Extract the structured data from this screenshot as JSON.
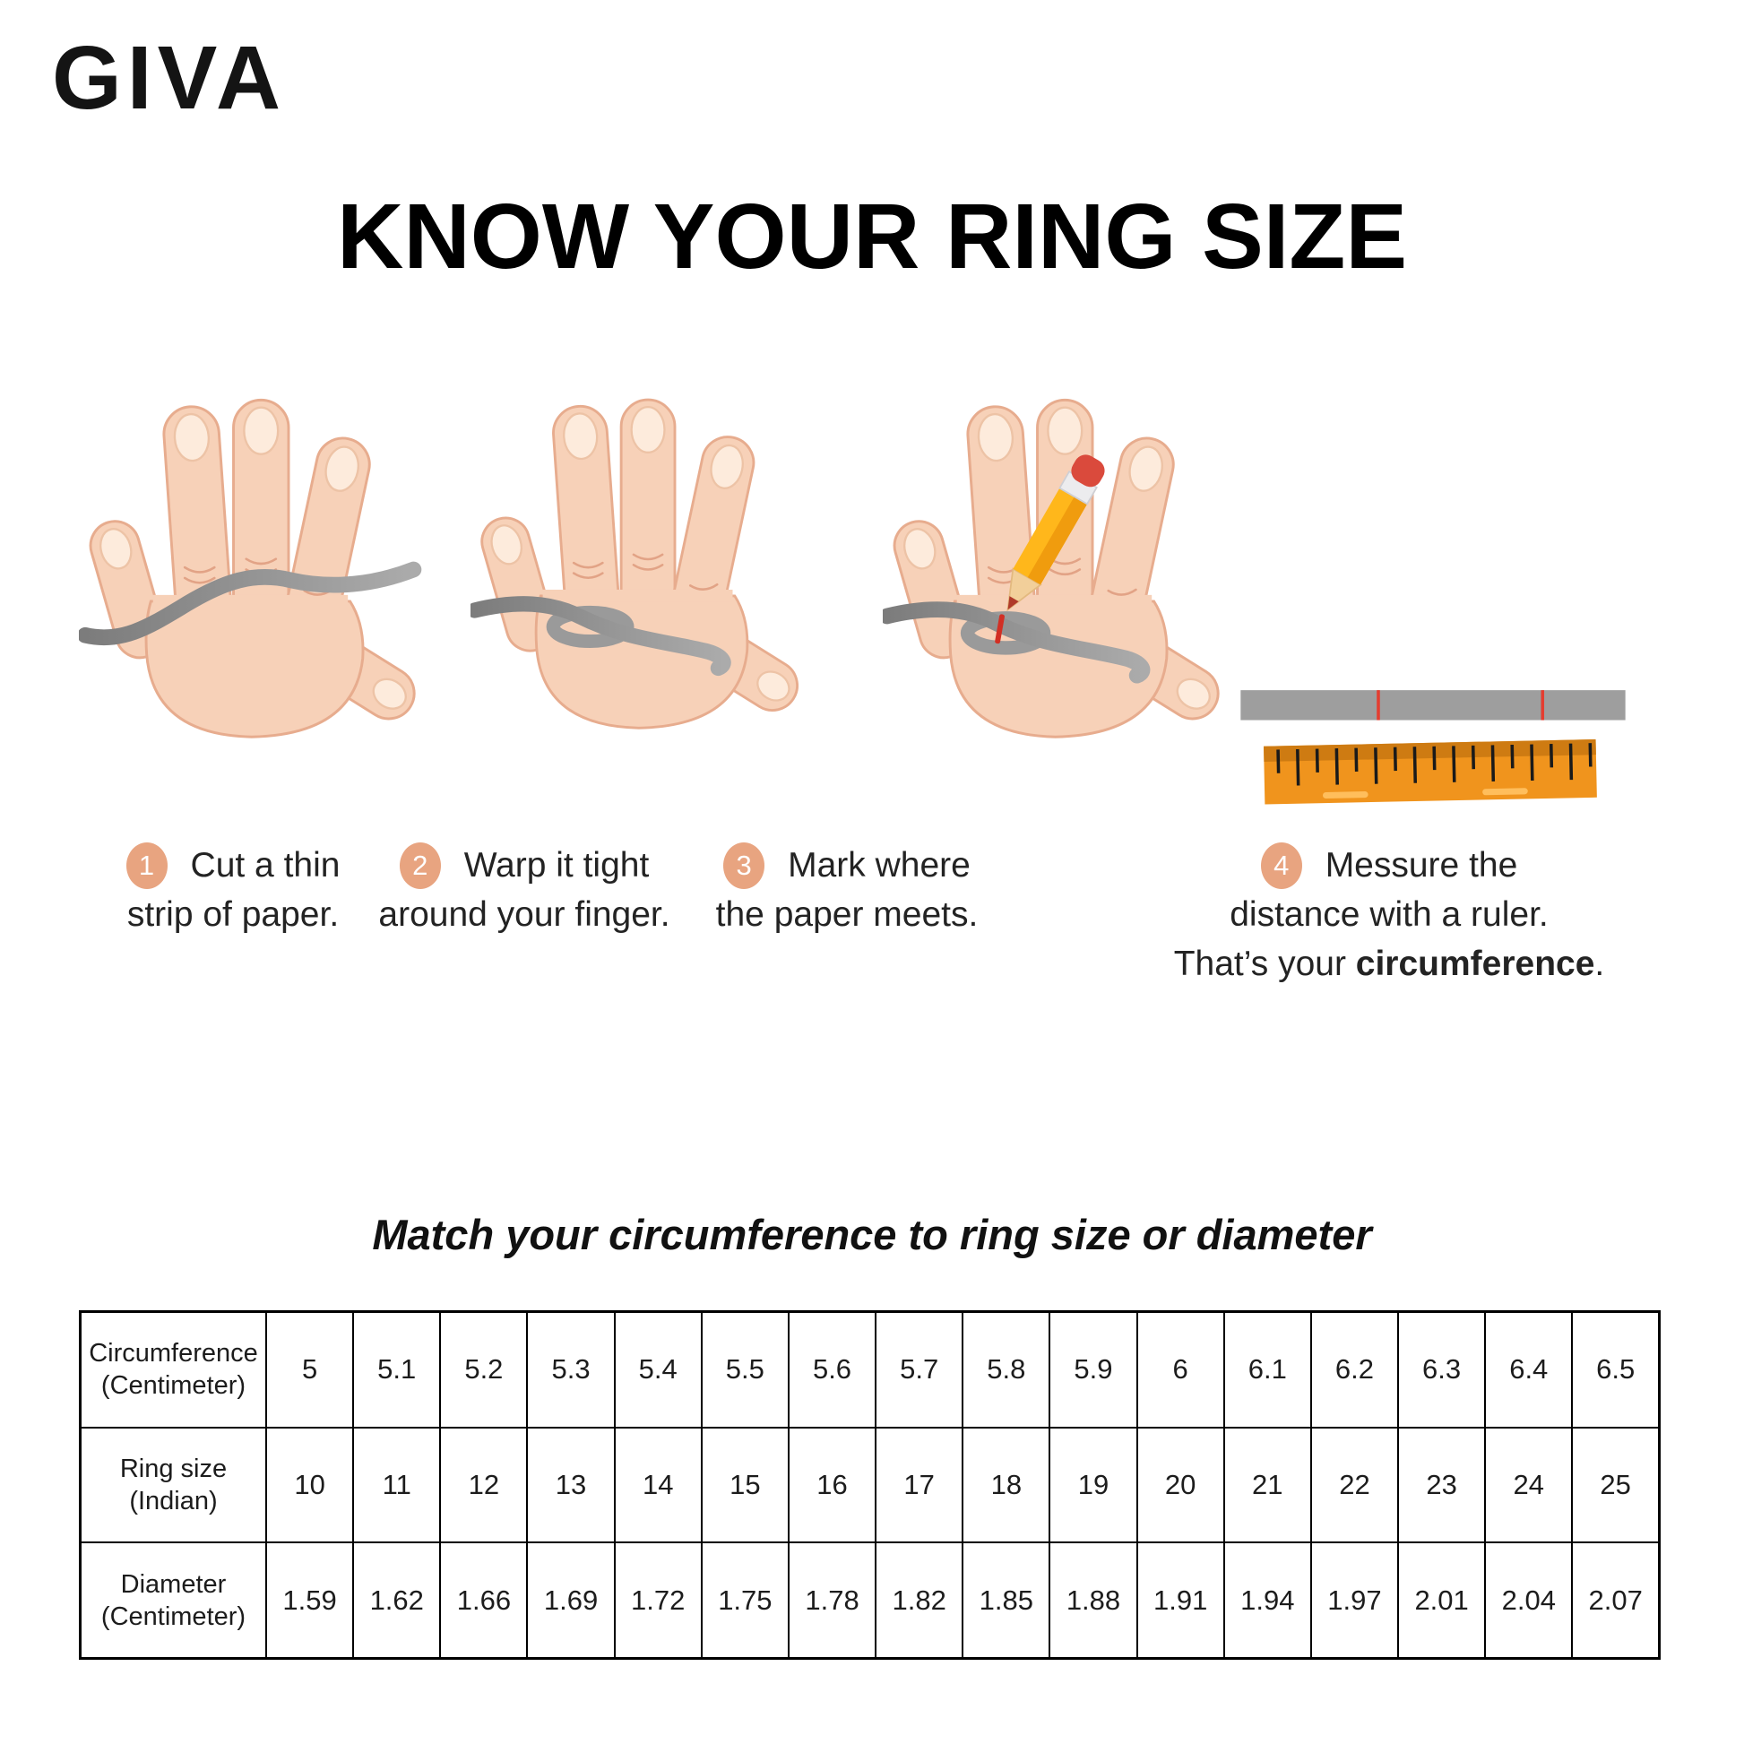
{
  "brand": {
    "logo_text": "GIVA"
  },
  "title": "KNOW YOUR RING SIZE",
  "steps": [
    {
      "number": "1",
      "line1": "Cut a thin",
      "line2": "strip of paper."
    },
    {
      "number": "2",
      "line1": "Warp it tight",
      "line2": "around your finger."
    },
    {
      "number": "3",
      "line1": "Mark where",
      "line2": "the paper meets."
    },
    {
      "number": "4",
      "line1": "Messure the",
      "line2": "distance with a ruler.",
      "line3_prefix": "That’s your ",
      "line3_bold": "circumference",
      "line3_suffix": "."
    }
  ],
  "illustrations": {
    "step1": "hand-with-paper-strip",
    "step2": "hand-strip-wrapped-around-finger",
    "step3": "hand-strip-marked-with-pencil",
    "step4": "ruler-measuring-paper-strip"
  },
  "table": {
    "caption": "Match your circumference to ring size or diameter",
    "rows": [
      {
        "label_line1": "Circumference",
        "label_line2": "(Centimeter)",
        "values": [
          "5",
          "5.1",
          "5.2",
          "5.3",
          "5.4",
          "5.5",
          "5.6",
          "5.7",
          "5.8",
          "5.9",
          "6",
          "6.1",
          "6.2",
          "6.3",
          "6.4",
          "6.5"
        ]
      },
      {
        "label_line1": "Ring size",
        "label_line2": "(Indian)",
        "values": [
          "10",
          "11",
          "12",
          "13",
          "14",
          "15",
          "16",
          "17",
          "18",
          "19",
          "20",
          "21",
          "22",
          "23",
          "24",
          "25"
        ]
      },
      {
        "label_line1": "Diameter",
        "label_line2": "(Centimeter)",
        "values": [
          "1.59",
          "1.62",
          "1.66",
          "1.69",
          "1.72",
          "1.75",
          "1.78",
          "1.82",
          "1.85",
          "1.88",
          "1.91",
          "1.94",
          "1.97",
          "2.01",
          "2.04",
          "2.07"
        ]
      }
    ]
  },
  "colors": {
    "badge_peach": "#E8A480",
    "strip_gray": "#8F8F8F",
    "mark_red": "#D22F24",
    "ruler_orange": "#F0941D",
    "ruler_shadow": "#CE7B12",
    "skin": "#F7D1B8",
    "skin_outline": "#E7AC8E",
    "text": "#1F1F1F"
  }
}
